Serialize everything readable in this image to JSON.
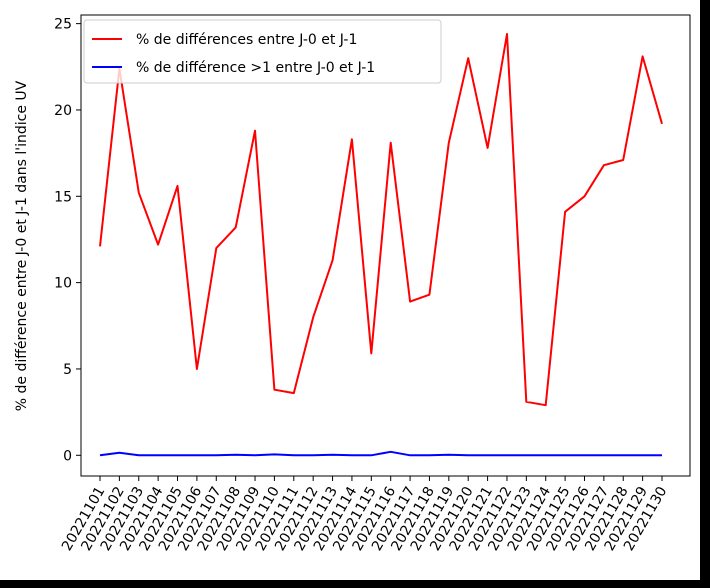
{
  "chart_data": {
    "type": "line",
    "title": "",
    "xlabel": "",
    "ylabel": "% de différence entre J-0 et J-1 dans l'indice UV",
    "categories": [
      "20221101",
      "20221102",
      "20221103",
      "20221104",
      "20221105",
      "20221106",
      "20221107",
      "20221108",
      "20221109",
      "20221110",
      "20221111",
      "20221112",
      "20221113",
      "20221114",
      "20221115",
      "20221116",
      "20221117",
      "20221118",
      "20221119",
      "20221120",
      "20221121",
      "20221122",
      "20221123",
      "20221124",
      "20221125",
      "20221126",
      "20221127",
      "20221128",
      "20221129",
      "20221130"
    ],
    "ylim": [
      -1.2,
      25.5
    ],
    "yticks": [
      0,
      5,
      10,
      15,
      20,
      25
    ],
    "grid": false,
    "legend_position": "top-left",
    "series": [
      {
        "name": "% de différences entre J-0 et J-1",
        "color": "#ff0000",
        "values": [
          12.1,
          22.4,
          15.2,
          12.2,
          15.6,
          5.0,
          12.0,
          13.2,
          18.8,
          3.8,
          3.6,
          8.0,
          11.3,
          18.3,
          5.9,
          18.1,
          8.9,
          9.3,
          18.1,
          23.0,
          17.8,
          24.4,
          3.1,
          2.9,
          14.1,
          15.0,
          16.8,
          17.1,
          23.1,
          19.2
        ]
      },
      {
        "name": "% de différence >1 entre J-0 et J-1",
        "color": "#0000ff",
        "values": [
          0.0,
          0.15,
          0.0,
          0.0,
          0.0,
          0.0,
          0.0,
          0.03,
          0.0,
          0.05,
          0.0,
          0.0,
          0.03,
          0.0,
          0.0,
          0.2,
          0.0,
          0.0,
          0.03,
          0.0,
          0.0,
          0.0,
          0.0,
          0.0,
          0.0,
          0.0,
          0.0,
          0.0,
          0.0,
          0.0
        ]
      }
    ]
  }
}
